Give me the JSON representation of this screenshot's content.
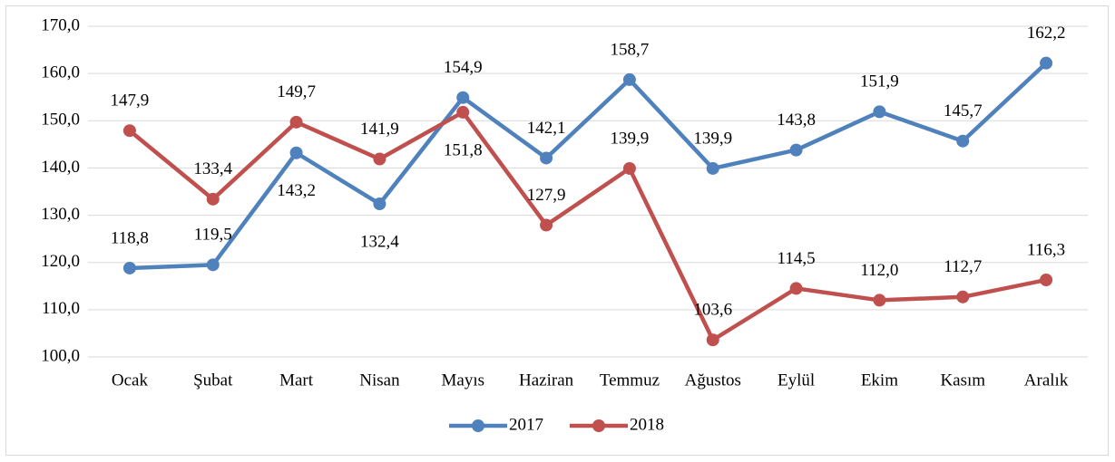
{
  "chart_data": {
    "type": "line",
    "categories": [
      "Ocak",
      "Şubat",
      "Mart",
      "Nisan",
      "Mayıs",
      "Haziran",
      "Temmuz",
      "Ağustos",
      "Eylül",
      "Ekim",
      "Kasım",
      "Aralık"
    ],
    "series": [
      {
        "name": "2017",
        "color": "#4f81bd",
        "values": [
          118.8,
          119.5,
          143.2,
          132.4,
          154.9,
          142.1,
          158.7,
          139.9,
          143.8,
          151.9,
          145.7,
          162.2
        ],
        "value_labels": [
          "118,8",
          "119,5",
          "143,2",
          "132,4",
          "154,9",
          "142,1",
          "158,7",
          "139,9",
          "143,8",
          "151,9",
          "145,7",
          "162,2"
        ]
      },
      {
        "name": "2018",
        "color": "#c0504d",
        "values": [
          147.9,
          133.4,
          149.7,
          141.9,
          151.8,
          127.9,
          139.9,
          103.6,
          114.5,
          112.0,
          112.7,
          116.3
        ],
        "value_labels": [
          "147,9",
          "133,4",
          "149,7",
          "141,9",
          "151,8",
          "127,9",
          "139,9",
          "103,6",
          "114,5",
          "112,0",
          "112,7",
          "116,3"
        ]
      }
    ],
    "ylim": [
      100,
      170
    ],
    "yticks": [
      {
        "value": 100,
        "label": "100,0"
      },
      {
        "value": 110,
        "label": "110,0"
      },
      {
        "value": 120,
        "label": "120,0"
      },
      {
        "value": 130,
        "label": "130,0"
      },
      {
        "value": 140,
        "label": "140,0"
      },
      {
        "value": 150,
        "label": "150,0"
      },
      {
        "value": 160,
        "label": "160,0"
      },
      {
        "value": 170,
        "label": "170,0"
      }
    ],
    "grid": true,
    "legend": "bottom"
  }
}
